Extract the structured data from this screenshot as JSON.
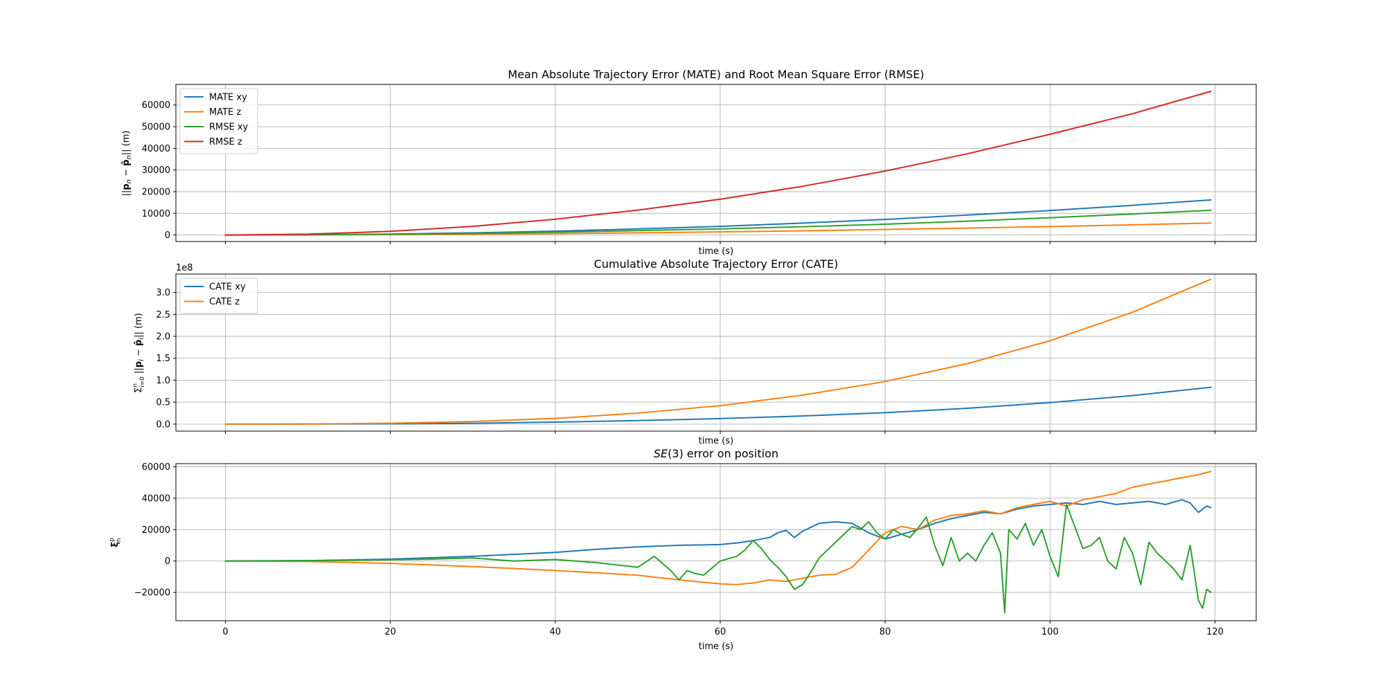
{
  "chart_data": [
    {
      "type": "line",
      "title": "Mean Absolute Trajectory Error (MATE) and Root Mean Square Error (RMSE)",
      "xlabel": "time (s)",
      "ylabel": "||p_n − p̂_n|| (m)",
      "xlim": [
        -6,
        125
      ],
      "ylim": [
        -3000,
        69500
      ],
      "xticks": [
        0,
        20,
        40,
        60,
        80,
        100,
        120
      ],
      "show_xtick_labels": false,
      "yticks": [
        0,
        10000,
        20000,
        30000,
        40000,
        50000,
        60000
      ],
      "ytick_labels": [
        "0",
        "10000",
        "20000",
        "30000",
        "40000",
        "50000",
        "60000"
      ],
      "grid": true,
      "legend": "upper left",
      "series": [
        {
          "name": "MATE xy",
          "color": "#1f77b4",
          "x": [
            0,
            10,
            20,
            30,
            40,
            50,
            60,
            70,
            80,
            90,
            100,
            110,
            119.5
          ],
          "y": [
            0,
            110,
            450,
            1000,
            1800,
            2800,
            4000,
            5500,
            7200,
            9200,
            11300,
            13700,
            16200
          ]
        },
        {
          "name": "MATE z",
          "color": "#ff7f0e",
          "x": [
            0,
            10,
            20,
            30,
            40,
            50,
            60,
            70,
            80,
            90,
            100,
            110,
            119.5
          ],
          "y": [
            0,
            40,
            150,
            350,
            650,
            1000,
            1450,
            1950,
            2550,
            3200,
            3900,
            4700,
            5500
          ]
        },
        {
          "name": "RMSE xy",
          "color": "#2ca02c",
          "x": [
            0,
            10,
            20,
            30,
            40,
            50,
            60,
            70,
            80,
            90,
            100,
            110,
            119.5
          ],
          "y": [
            0,
            90,
            350,
            750,
            1300,
            2000,
            2850,
            3850,
            5000,
            6400,
            8000,
            9700,
            11400
          ]
        },
        {
          "name": "RMSE z",
          "color": "#d62728",
          "x": [
            0,
            10,
            20,
            30,
            40,
            50,
            60,
            70,
            80,
            90,
            100,
            110,
            119.5
          ],
          "y": [
            0,
            400,
            1700,
            4000,
            7300,
            11500,
            16500,
            22500,
            29500,
            37500,
            46500,
            56000,
            66300
          ]
        }
      ]
    },
    {
      "type": "line",
      "title": "Cumulative Absolute Trajectory Error (CATE)",
      "xlabel": "time (s)",
      "ylabel": "Σ_{i=0}^{n} ||p_i − p̂_i|| (m)",
      "offset_text": "1e8",
      "xlim": [
        -6,
        125
      ],
      "ylim": [
        -0.16,
        3.42
      ],
      "xticks": [
        0,
        20,
        40,
        60,
        80,
        100,
        120
      ],
      "show_xtick_labels": false,
      "yticks": [
        0,
        0.5,
        1.0,
        1.5,
        2.0,
        2.5,
        3.0
      ],
      "ytick_labels": [
        "0.0",
        "0.5",
        "1.0",
        "1.5",
        "2.0",
        "2.5",
        "3.0"
      ],
      "grid": true,
      "legend": "upper left",
      "series": [
        {
          "name": "CATE xy",
          "color": "#1f77b4",
          "x": [
            0,
            10,
            20,
            30,
            40,
            50,
            60,
            70,
            80,
            90,
            100,
            110,
            119.5
          ],
          "y": [
            0,
            0.001,
            0.006,
            0.019,
            0.045,
            0.08,
            0.125,
            0.185,
            0.26,
            0.36,
            0.49,
            0.65,
            0.84
          ]
        },
        {
          "name": "CATE z",
          "color": "#ff7f0e",
          "x": [
            0,
            10,
            20,
            30,
            40,
            50,
            60,
            70,
            80,
            90,
            100,
            110,
            119.5
          ],
          "y": [
            0,
            0.003,
            0.02,
            0.06,
            0.13,
            0.25,
            0.42,
            0.66,
            0.97,
            1.38,
            1.9,
            2.55,
            3.3
          ]
        }
      ]
    },
    {
      "type": "line",
      "title": "SE(3) error on position",
      "xlabel": "time (s)",
      "ylabel": "ξ_n^p",
      "xlim": [
        -6,
        125
      ],
      "ylim": [
        -38000,
        62000
      ],
      "xticks": [
        0,
        20,
        40,
        60,
        80,
        100,
        120
      ],
      "xtick_labels": [
        "0",
        "20",
        "40",
        "60",
        "80",
        "100",
        "120"
      ],
      "show_xtick_labels": true,
      "yticks": [
        -20000,
        0,
        20000,
        40000,
        60000
      ],
      "ytick_labels": [
        "−20000",
        "0",
        "20000",
        "40000",
        "60000"
      ],
      "grid": true,
      "legend": "none",
      "series": [
        {
          "color": "#1f77b4",
          "x": [
            0,
            10,
            20,
            30,
            40,
            45,
            50,
            55,
            60,
            62,
            64,
            66,
            67,
            68,
            69,
            70,
            72,
            74,
            76,
            78,
            80,
            82,
            84,
            86,
            88,
            90,
            92,
            94,
            96,
            98,
            100,
            102,
            104,
            106,
            108,
            110,
            112,
            114,
            116,
            117,
            118,
            119,
            119.5
          ],
          "y": [
            0,
            300,
            1200,
            3000,
            5500,
            7500,
            9000,
            10000,
            10500,
            11500,
            13000,
            15000,
            18000,
            19500,
            15000,
            19000,
            24000,
            25000,
            24000,
            18000,
            14000,
            17000,
            20000,
            24000,
            27000,
            29000,
            31000,
            30000,
            33000,
            35000,
            36000,
            37000,
            36000,
            38000,
            36000,
            37000,
            38000,
            36000,
            39000,
            37000,
            31000,
            35000,
            34000
          ]
        },
        {
          "color": "#ff7f0e",
          "x": [
            0,
            10,
            20,
            30,
            40,
            50,
            55,
            60,
            62,
            64,
            66,
            68,
            70,
            72,
            74,
            76,
            78,
            80,
            82,
            84,
            86,
            88,
            90,
            92,
            94,
            96,
            98,
            100,
            102,
            104,
            106,
            108,
            110,
            112,
            114,
            116,
            118,
            119.5
          ],
          "y": [
            0,
            -300,
            -1500,
            -3500,
            -6000,
            -9000,
            -12000,
            -14500,
            -15000,
            -14000,
            -12000,
            -13000,
            -11000,
            -9000,
            -8500,
            -4000,
            7000,
            18000,
            22000,
            20000,
            26000,
            29000,
            30000,
            32000,
            30000,
            34000,
            36000,
            38000,
            35000,
            39000,
            41000,
            43000,
            47000,
            49000,
            51000,
            53000,
            55000,
            57000
          ]
        },
        {
          "color": "#2ca02c",
          "x": [
            0,
            10,
            20,
            25,
            30,
            35,
            40,
            45,
            50,
            52,
            54,
            55,
            56,
            57,
            58,
            60,
            62,
            63,
            64,
            65,
            66,
            67,
            68,
            69,
            70,
            71,
            72,
            74,
            75,
            76,
            77,
            78,
            79,
            80,
            81,
            82,
            83,
            84,
            85,
            86,
            87,
            88,
            89,
            90,
            91,
            92,
            93,
            94,
            94.5,
            95,
            96,
            97,
            98,
            99,
            100,
            101,
            102,
            103,
            104,
            105,
            106,
            107,
            108,
            109,
            110,
            111,
            112,
            113,
            114,
            115,
            116,
            117,
            118,
            118.5,
            119,
            119.5
          ],
          "y": [
            0,
            200,
            800,
            1200,
            2000,
            0,
            1000,
            -1000,
            -4000,
            3000,
            -6000,
            -12000,
            -6000,
            -8000,
            -9000,
            0,
            3000,
            7000,
            13000,
            8000,
            1000,
            -4000,
            -10000,
            -18000,
            -15000,
            -7000,
            2000,
            12000,
            17000,
            22000,
            20000,
            25000,
            18000,
            14000,
            20000,
            17000,
            15000,
            21000,
            28000,
            10000,
            -3000,
            15000,
            0,
            5000,
            0,
            10000,
            18000,
            5000,
            -33000,
            20000,
            14000,
            24000,
            10000,
            20000,
            3000,
            -10000,
            36000,
            22000,
            8000,
            10000,
            15000,
            0,
            -5000,
            15000,
            5000,
            -15000,
            12000,
            5000,
            0,
            -5000,
            -12000,
            10000,
            -25000,
            -30000,
            -18000,
            -20000
          ]
        }
      ]
    }
  ]
}
